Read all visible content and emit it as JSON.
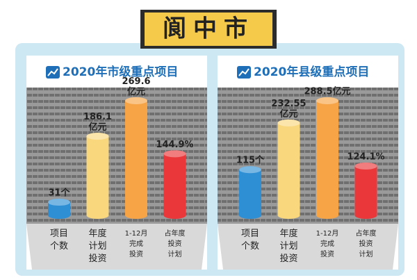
{
  "title": "阆中市",
  "chart_data": [
    {
      "type": "bar",
      "title": "2020年市级重点项目",
      "categories": [
        "项目\n个数",
        "年度\n计划\n投资",
        "1-12月\n完成\n投资",
        "占年度\n投资\n计划"
      ],
      "values": [
        31,
        186.1,
        269.6,
        144.9
      ],
      "value_labels": [
        "31个",
        "186.1\n亿元",
        "269.6\n亿元",
        "144.9%"
      ],
      "colors": [
        "#2f8fd4",
        "#f9d77c",
        "#f6a445",
        "#e9373a"
      ]
    },
    {
      "type": "bar",
      "title": "2020年县级重点项目",
      "categories": [
        "项目\n个数",
        "年度\n计划\n投资",
        "1-12月\n完成\n投资",
        "占年度\n投资\n计划"
      ],
      "values": [
        115,
        232.55,
        288.5,
        124.1
      ],
      "value_labels": [
        "115个",
        "232.55\n亿元",
        "288.5亿元",
        "124.1%"
      ],
      "colors": [
        "#2f8fd4",
        "#f9d77c",
        "#f6a445",
        "#e9373a"
      ]
    }
  ]
}
